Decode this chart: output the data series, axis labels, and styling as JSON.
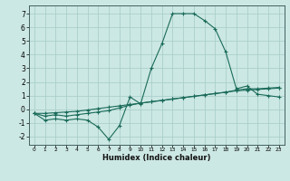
{
  "xlabel": "Humidex (Indice chaleur)",
  "bg_color": "#cce8e4",
  "grid_color": "#aacfcb",
  "line_color": "#1a6b5a",
  "xlim": [
    -0.5,
    23.5
  ],
  "ylim": [
    -2.6,
    7.6
  ],
  "xticks": [
    0,
    1,
    2,
    3,
    4,
    5,
    6,
    7,
    8,
    9,
    10,
    11,
    12,
    13,
    14,
    15,
    16,
    17,
    18,
    19,
    20,
    21,
    22,
    23
  ],
  "yticks": [
    -2,
    -1,
    0,
    1,
    2,
    3,
    4,
    5,
    6,
    7
  ],
  "series1_x": [
    0,
    1,
    2,
    3,
    4,
    5,
    6,
    7,
    8,
    9,
    10,
    11,
    12,
    13,
    14,
    15,
    16,
    17,
    18,
    19,
    20,
    21,
    22,
    23
  ],
  "series1_y": [
    -0.3,
    -0.8,
    -0.7,
    -0.8,
    -0.7,
    -0.8,
    -1.3,
    -2.2,
    -1.2,
    0.9,
    0.4,
    3.0,
    4.8,
    7.0,
    7.0,
    7.0,
    6.5,
    5.9,
    4.2,
    1.5,
    1.7,
    1.1,
    1.0,
    0.9
  ],
  "series2_x": [
    0,
    1,
    2,
    3,
    4,
    5,
    6,
    7,
    8,
    9,
    10,
    11,
    12,
    13,
    14,
    15,
    16,
    17,
    18,
    19,
    20,
    21,
    22,
    23
  ],
  "series2_y": [
    -0.3,
    -0.5,
    -0.4,
    -0.5,
    -0.4,
    -0.3,
    -0.2,
    -0.1,
    0.1,
    0.3,
    0.45,
    0.55,
    0.65,
    0.75,
    0.85,
    0.95,
    1.05,
    1.15,
    1.25,
    1.4,
    1.5,
    1.5,
    1.55,
    1.6
  ],
  "series3_x": [
    0,
    1,
    2,
    3,
    4,
    5,
    6,
    7,
    8,
    9,
    10,
    11,
    12,
    13,
    14,
    15,
    16,
    17,
    18,
    19,
    20,
    21,
    22,
    23
  ],
  "series3_y": [
    -0.3,
    -0.3,
    -0.25,
    -0.2,
    -0.15,
    -0.05,
    0.05,
    0.15,
    0.25,
    0.35,
    0.45,
    0.55,
    0.65,
    0.75,
    0.85,
    0.95,
    1.05,
    1.15,
    1.25,
    1.35,
    1.4,
    1.45,
    1.5,
    1.55
  ]
}
